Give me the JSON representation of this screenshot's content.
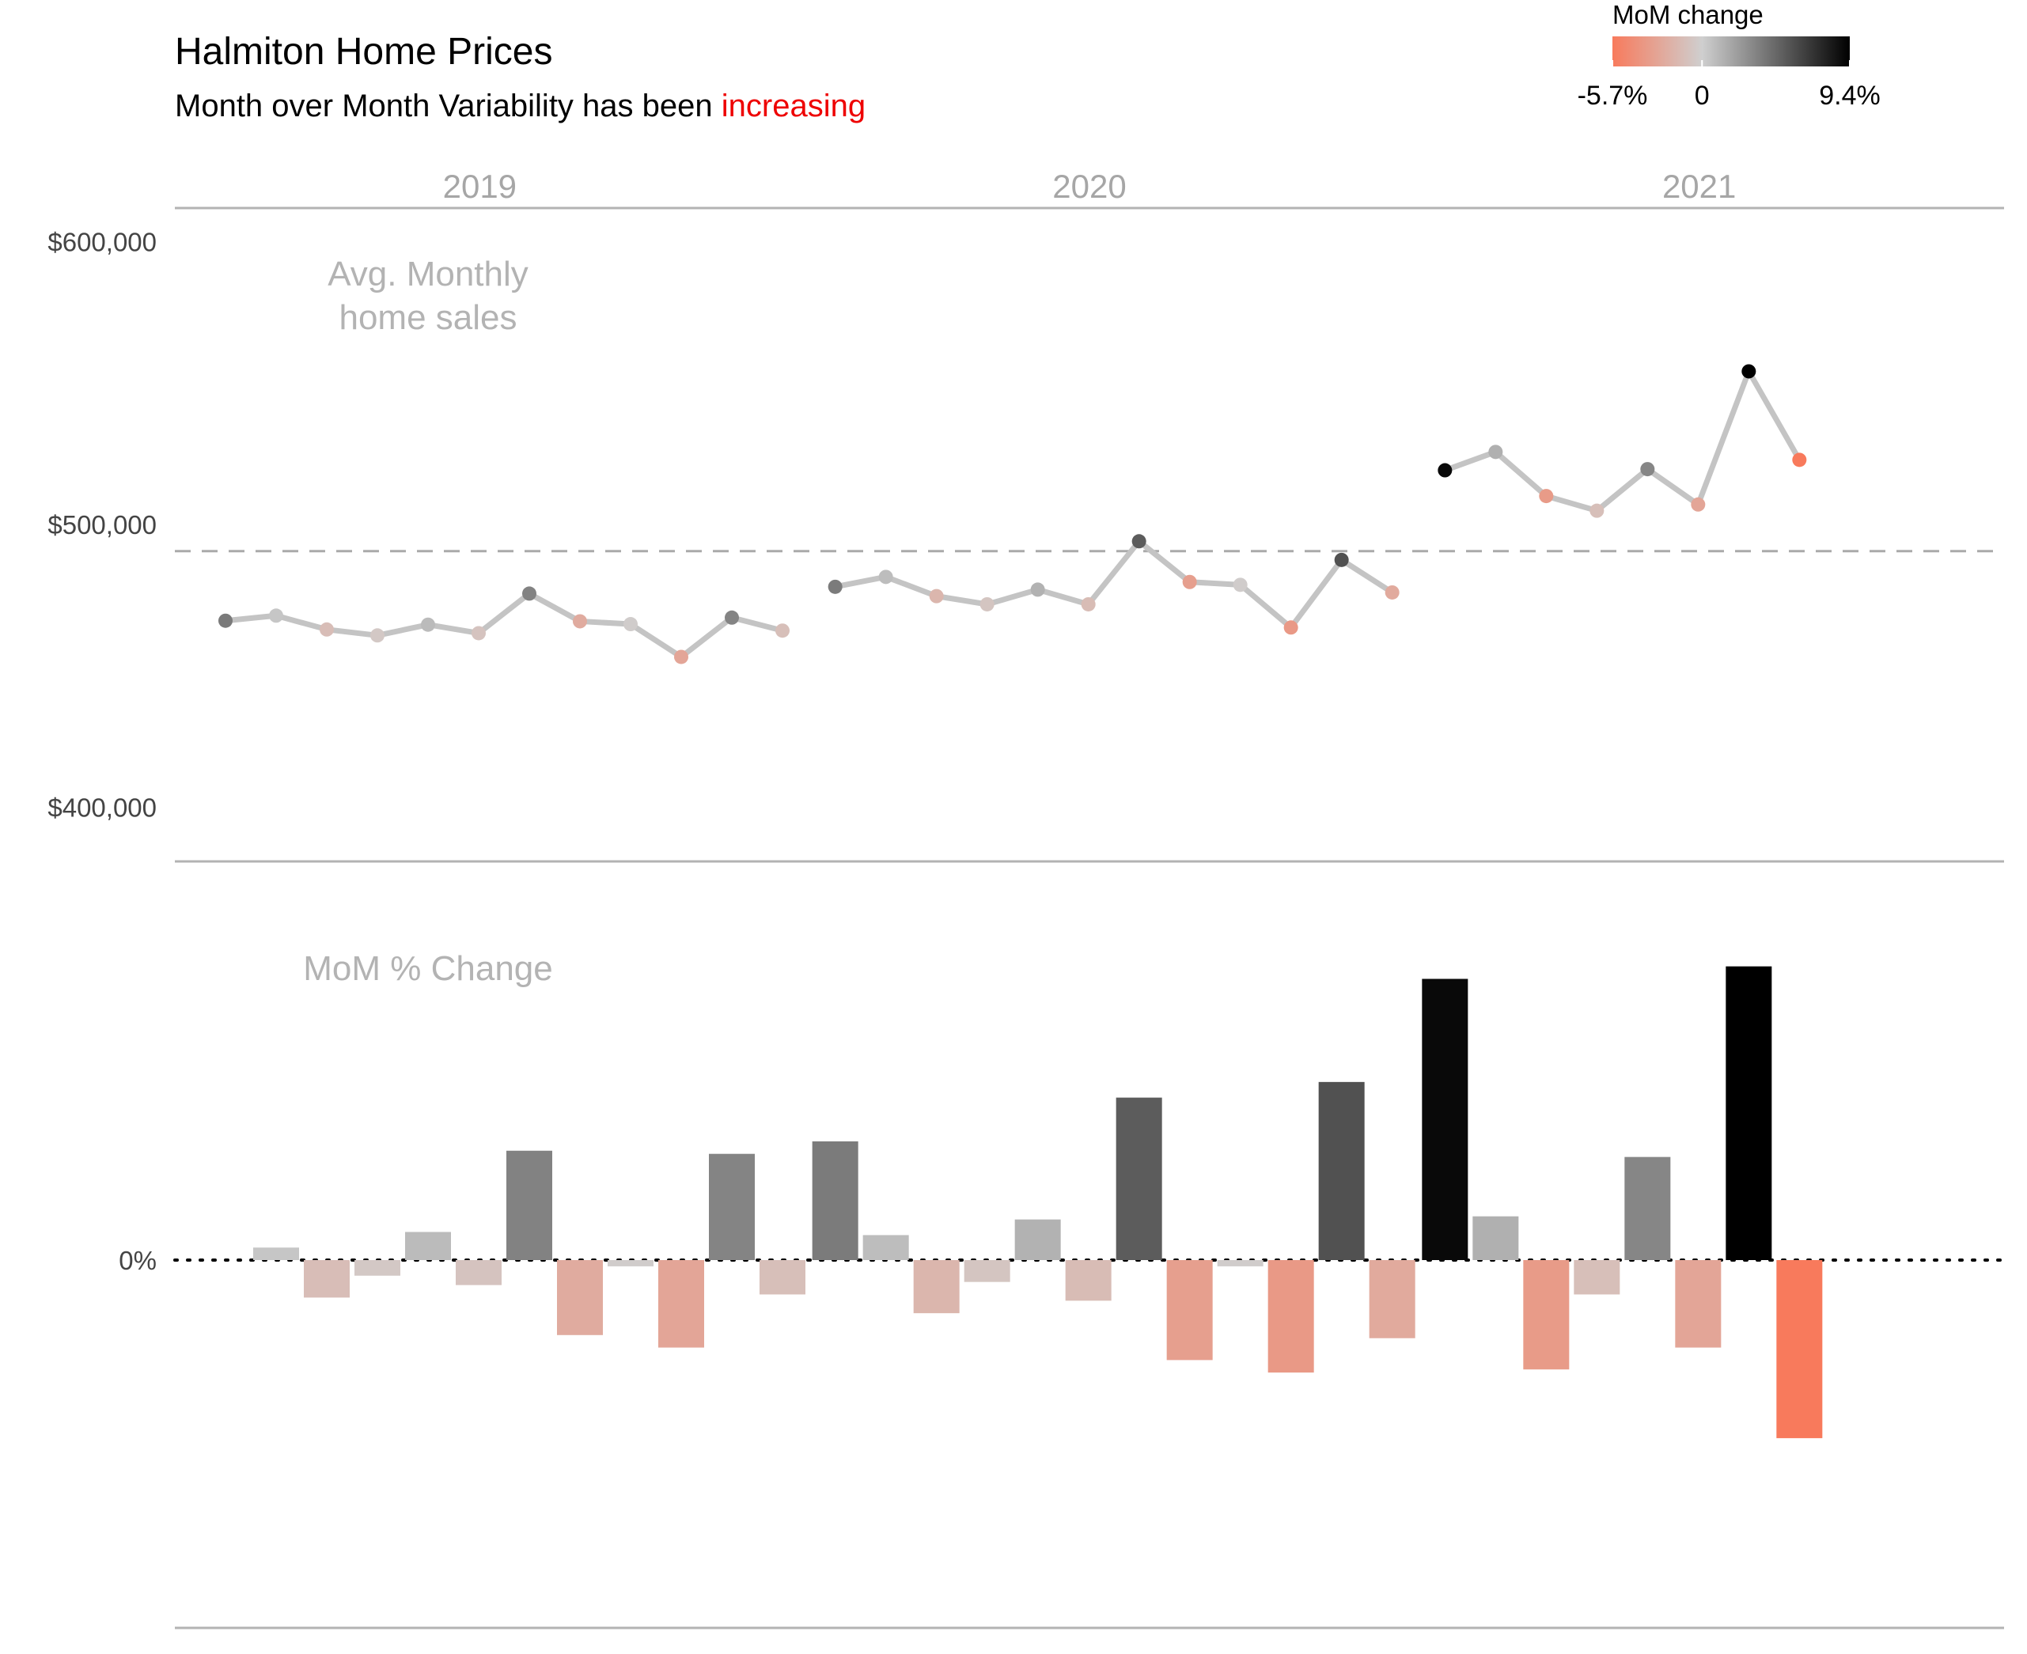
{
  "title": "Halmiton Home Prices",
  "subtitle_prefix": "Month over Month Variability has been ",
  "subtitle_highlight": "increasing",
  "legend": {
    "title": "MoM change",
    "min_label": "-5.7%",
    "mid_label": "0",
    "max_label": "9.4%",
    "min_value": -5.7,
    "max_value": 9.4,
    "color_low": "#f87a5c",
    "color_mid": "#cfcfcf",
    "color_high": "#000000"
  },
  "colors": {
    "accent_red": "#ee0000",
    "line": "#c4c4c4",
    "axis": "#b3b3b3",
    "facet_label": "#a6a6a6",
    "panel_label": "#b3b3b3"
  },
  "chart_data": {
    "type": "line+bar",
    "facets": [
      "2019",
      "2020",
      "2021"
    ],
    "panels": {
      "price": {
        "label": "Avg. Monthly\nhome sales",
        "y_ticks": [
          "$600,000",
          "$500,000",
          "$400,000"
        ],
        "y_tick_values": [
          600000,
          500000,
          400000
        ],
        "ylim": [
          390000,
          611000
        ],
        "reference_line": 500000
      },
      "mom": {
        "label": "MoM % Change",
        "y_ticks": [
          "0%"
        ],
        "y_tick_values": [
          0
        ],
        "ylim": [
          -12.2,
          11.8
        ]
      }
    },
    "series": [
      {
        "facet": "2019",
        "prices": [
          475400,
          477200,
          472300,
          470200,
          474000,
          471000,
          485000,
          475200,
          474200,
          462600,
          476500,
          471900
        ],
        "mom_pct": [
          0.4,
          -1.2,
          -0.5,
          0.9,
          -0.8,
          3.5,
          -2.4,
          -0.2,
          -2.8,
          3.4,
          -1.1
        ]
      },
      {
        "facet": "2020",
        "prices": [
          487400,
          490900,
          484100,
          481200,
          486400,
          481200,
          503500,
          489100,
          488100,
          473000,
          496900,
          485400
        ],
        "mom_pct": [
          3.8,
          0.8,
          -1.7,
          -0.7,
          1.3,
          -1.3,
          5.2,
          -3.2,
          -0.2,
          -3.6,
          5.7,
          -2.5
        ]
      },
      {
        "facet": "2021",
        "prices": [
          528600,
          535100,
          519500,
          514300,
          529000,
          516500,
          563600,
          532300
        ],
        "mom_pct": [
          9.0,
          1.4,
          -3.5,
          -1.1,
          3.3,
          -2.8,
          9.4,
          -5.7
        ]
      }
    ]
  }
}
